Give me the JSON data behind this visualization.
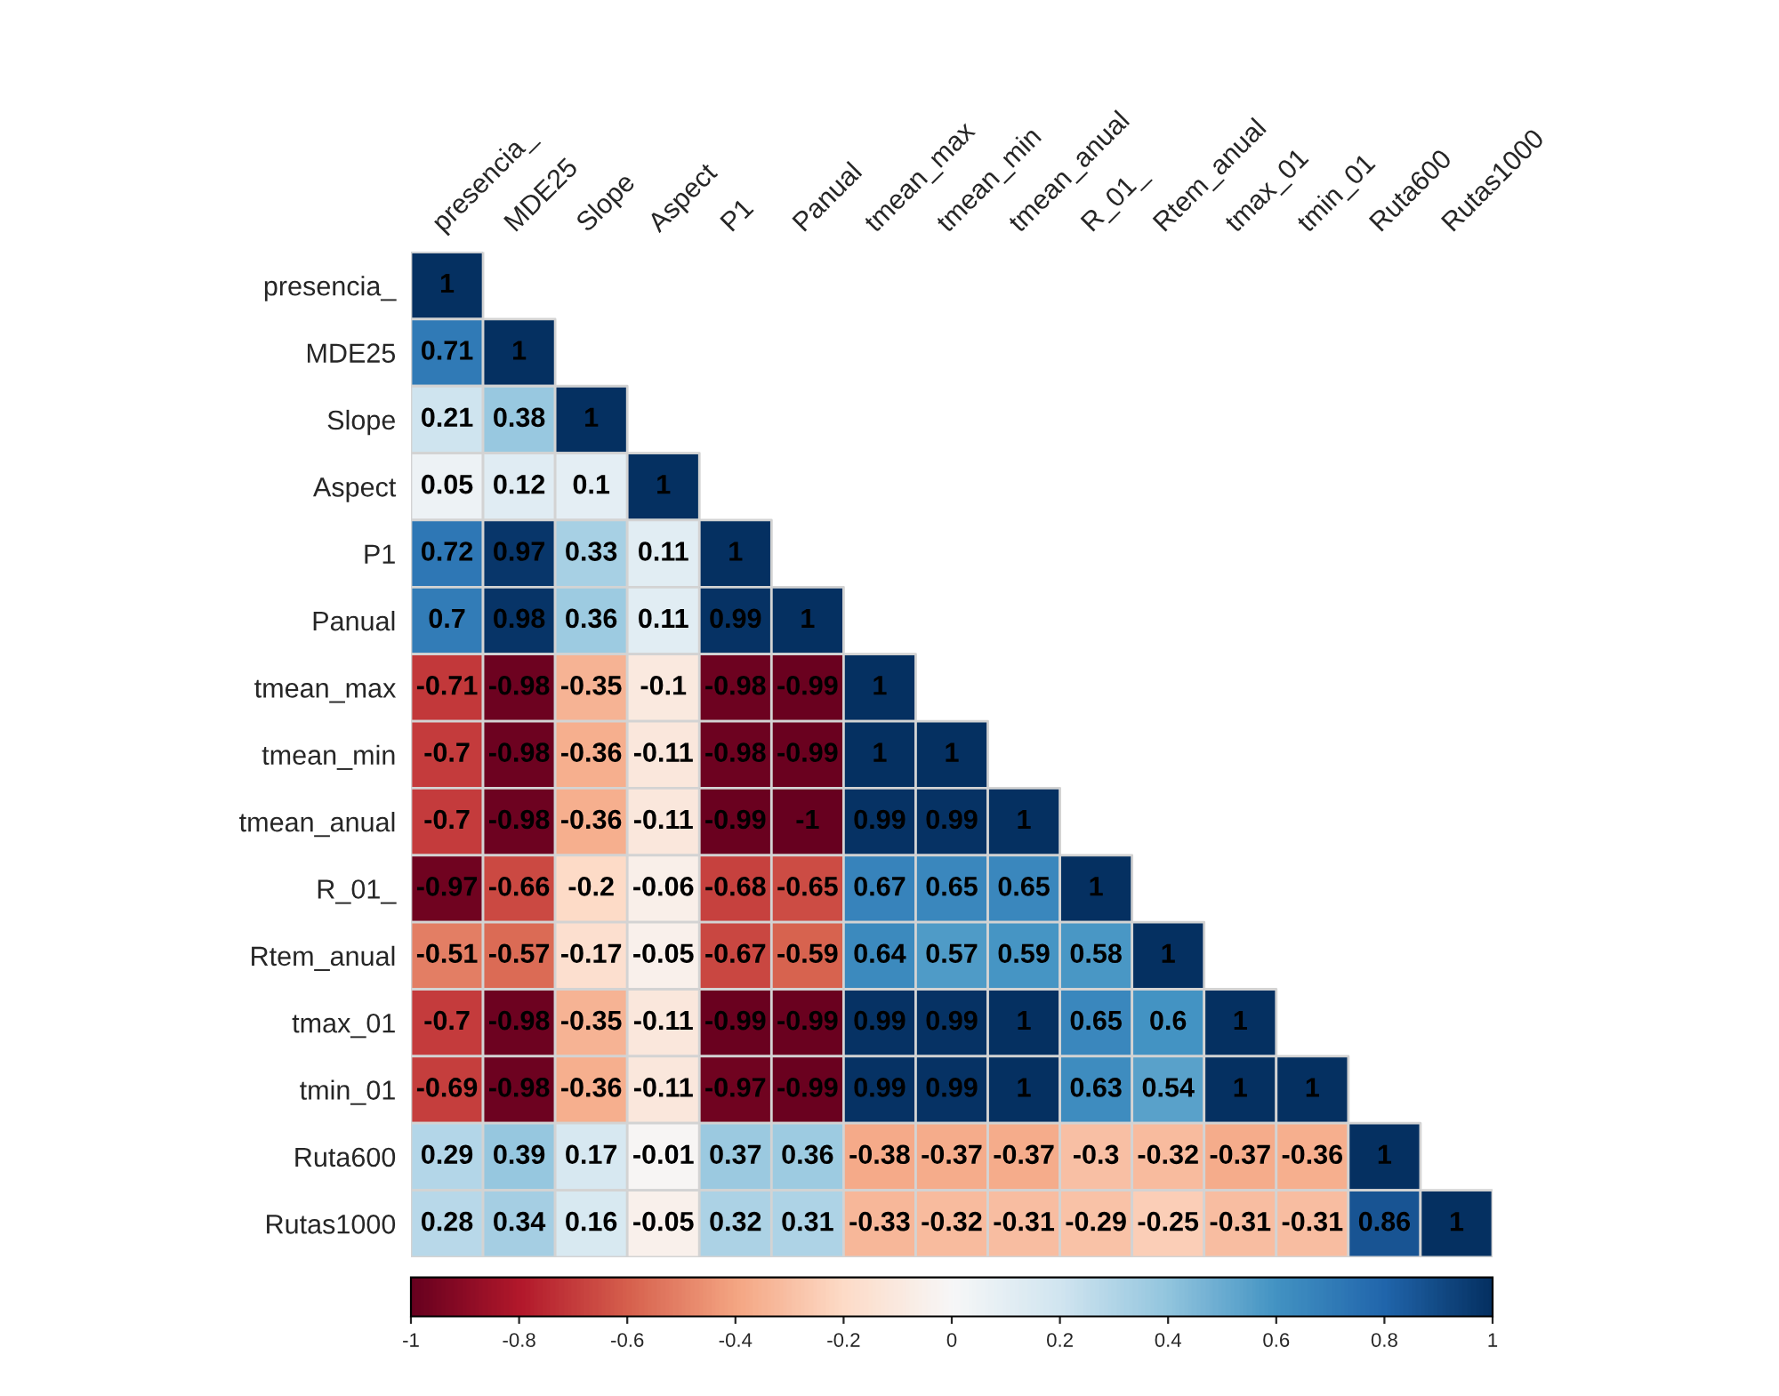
{
  "chart_data": {
    "type": "heatmap",
    "categories": [
      "presencia_",
      "MDE25",
      "Slope",
      "Aspect",
      "P1",
      "Panual",
      "tmean_max",
      "tmean_min",
      "tmean_anual",
      "R_01_",
      "Rtem_anual",
      "tmax_01",
      "tmin_01",
      "Ruta600",
      "Rutas1000"
    ],
    "y_categories": [
      "presencia_",
      "MDE25",
      "Slope",
      "Aspect",
      "P1",
      "Panual",
      "tmean_max",
      "tmean_min",
      "tmean_anual",
      "R_01_",
      "Rtem_anual",
      "tmax_01",
      "tmin_01",
      "Ruta600",
      "Rutas1000"
    ],
    "cells": [
      [
        1,
        null,
        null,
        null,
        null,
        null,
        null,
        null,
        null,
        null,
        null,
        null,
        null,
        null,
        null
      ],
      [
        0.71,
        1,
        null,
        null,
        null,
        null,
        null,
        null,
        null,
        null,
        null,
        null,
        null,
        null,
        null
      ],
      [
        0.21,
        0.38,
        1,
        null,
        null,
        null,
        null,
        null,
        null,
        null,
        null,
        null,
        null,
        null,
        null
      ],
      [
        0.05,
        0.12,
        0.1,
        1,
        null,
        null,
        null,
        null,
        null,
        null,
        null,
        null,
        null,
        null,
        null
      ],
      [
        0.72,
        0.97,
        0.33,
        0.11,
        1,
        null,
        null,
        null,
        null,
        null,
        null,
        null,
        null,
        null,
        null
      ],
      [
        0.7,
        0.98,
        0.36,
        0.11,
        0.99,
        1,
        null,
        null,
        null,
        null,
        null,
        null,
        null,
        null,
        null
      ],
      [
        -0.71,
        -0.98,
        -0.35,
        -0.1,
        -0.98,
        -0.99,
        1,
        null,
        null,
        null,
        null,
        null,
        null,
        null,
        null
      ],
      [
        -0.7,
        -0.98,
        -0.36,
        -0.11,
        -0.98,
        -0.99,
        1,
        1,
        null,
        null,
        null,
        null,
        null,
        null,
        null
      ],
      [
        -0.7,
        -0.98,
        -0.36,
        -0.11,
        -0.99,
        -1,
        0.99,
        0.99,
        1,
        null,
        null,
        null,
        null,
        null,
        null
      ],
      [
        -0.97,
        -0.66,
        -0.2,
        -0.06,
        -0.68,
        -0.65,
        0.67,
        0.65,
        0.65,
        1,
        null,
        null,
        null,
        null,
        null
      ],
      [
        -0.51,
        -0.57,
        -0.17,
        -0.05,
        -0.67,
        -0.59,
        0.64,
        0.57,
        0.59,
        0.58,
        1,
        null,
        null,
        null,
        null
      ],
      [
        -0.7,
        -0.98,
        -0.35,
        -0.11,
        -0.99,
        -0.99,
        0.99,
        0.99,
        1,
        0.65,
        0.6,
        1,
        null,
        null,
        null
      ],
      [
        -0.69,
        -0.98,
        -0.36,
        -0.11,
        -0.97,
        -0.99,
        0.99,
        0.99,
        1,
        0.63,
        0.54,
        1,
        1,
        null,
        null
      ],
      [
        0.29,
        0.39,
        0.17,
        -0.01,
        0.37,
        0.36,
        -0.38,
        -0.37,
        -0.37,
        -0.3,
        -0.32,
        -0.37,
        -0.36,
        1,
        null
      ],
      [
        0.28,
        0.34,
        0.16,
        -0.05,
        0.32,
        0.31,
        -0.33,
        -0.32,
        -0.31,
        -0.29,
        -0.25,
        -0.31,
        -0.31,
        0.86,
        1
      ]
    ],
    "clim": [
      -1,
      1
    ],
    "cticks": [
      -1,
      -0.8,
      -0.6,
      -0.4,
      -0.2,
      0,
      0.2,
      0.4,
      0.6,
      0.8,
      1
    ],
    "data_labels": true
  }
}
